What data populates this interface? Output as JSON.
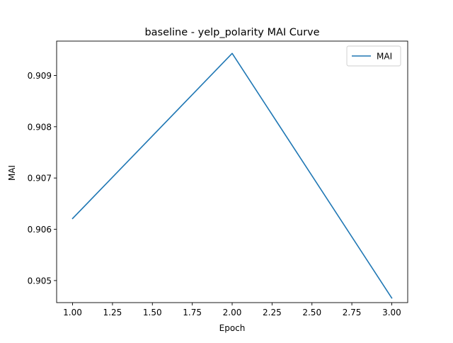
{
  "chart_data": {
    "type": "line",
    "title": "baseline - yelp_polarity MAI Curve",
    "xlabel": "Epoch",
    "ylabel": "MAI",
    "xlim": [
      0.9,
      3.1
    ],
    "ylim": [
      0.90457,
      0.90967
    ],
    "x_ticks": [
      1.0,
      1.25,
      1.5,
      1.75,
      2.0,
      2.25,
      2.5,
      2.75,
      3.0
    ],
    "x_tick_labels": [
      "1.00",
      "1.25",
      "1.50",
      "1.75",
      "2.00",
      "2.25",
      "2.50",
      "2.75",
      "3.00"
    ],
    "y_ticks": [
      0.905,
      0.906,
      0.907,
      0.908,
      0.909
    ],
    "y_tick_labels": [
      "0.905",
      "0.906",
      "0.907",
      "0.908",
      "0.909"
    ],
    "grid": false,
    "legend_position": "top-right",
    "series": [
      {
        "name": "MAI",
        "color": "#1f77b4",
        "x": [
          1,
          2,
          3
        ],
        "y": [
          0.90621,
          0.90943,
          0.90466
        ]
      }
    ]
  }
}
